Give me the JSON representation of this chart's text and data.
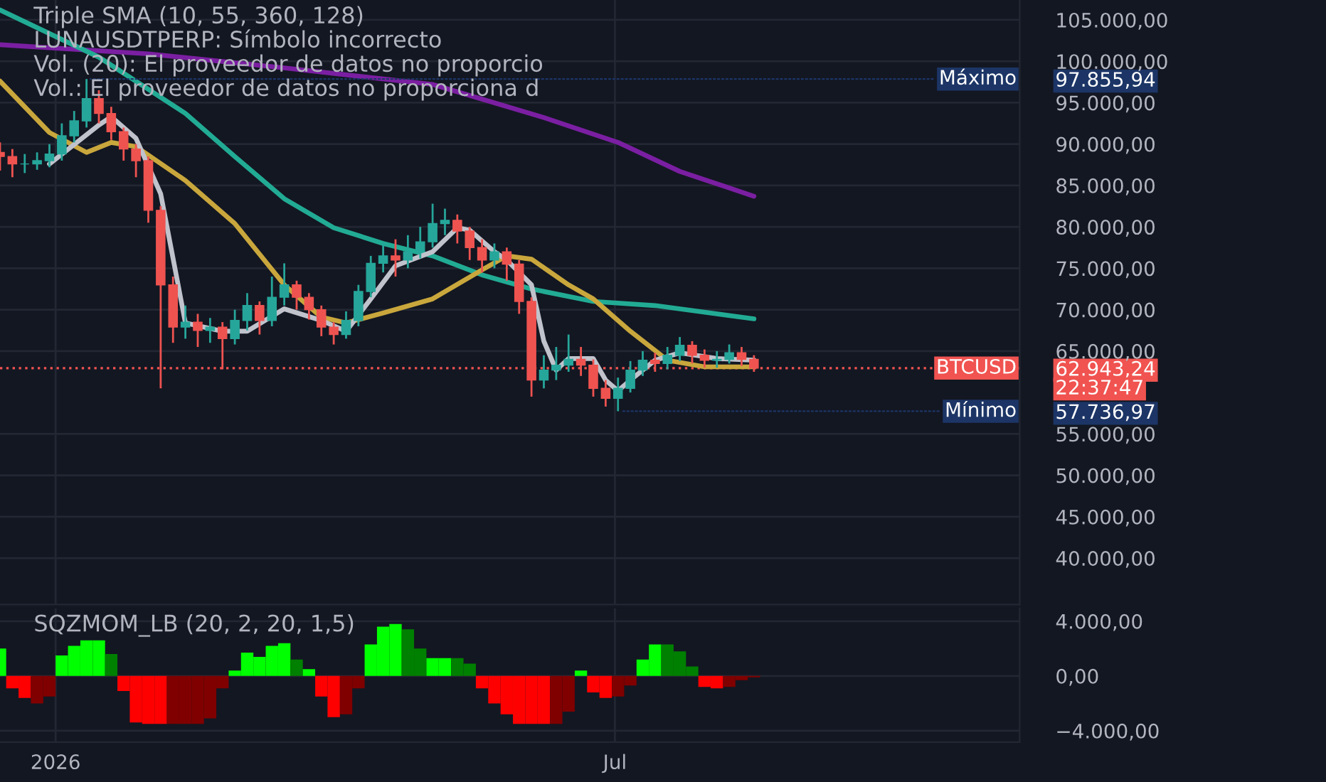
{
  "chart_data": [
    {
      "type": "candlestick",
      "title": "Triple SMA (10, 55, 360, 128)",
      "annotations": [
        "LUNAUSDTPERP: Símbolo incorrecto",
        "Vol. (20): El proveedor de datos no proporcio",
        "Vol.: El proveedor de datos no proporciona d",
        "22:37:47",
        {
          "text": "Máximo",
          "x": "2026-01-11",
          "y": 97855.94
        },
        {
          "text": "Mínimo",
          "x": "2026-07-02",
          "y": 57736.97
        }
      ],
      "x": [
        "2025-12-14",
        "2025-12-18",
        "2025-12-22",
        "2025-12-26",
        "2025-12-30",
        "2026-01-03",
        "2026-01-07",
        "2026-01-11",
        "2026-01-15",
        "2026-01-19",
        "2026-01-23",
        "2026-01-27",
        "2026-01-31",
        "2026-02-04",
        "2026-02-08",
        "2026-02-12",
        "2026-02-16",
        "2026-02-20",
        "2026-02-24",
        "2026-02-28",
        "2026-03-04",
        "2026-03-08",
        "2026-03-12",
        "2026-03-16",
        "2026-03-20",
        "2026-03-24",
        "2026-03-28",
        "2026-04-01",
        "2026-04-05",
        "2026-04-09",
        "2026-04-13",
        "2026-04-17",
        "2026-04-21",
        "2026-04-25",
        "2026-04-29",
        "2026-05-03",
        "2026-05-07",
        "2026-05-11",
        "2026-05-15",
        "2026-05-19",
        "2026-05-23",
        "2026-05-27",
        "2026-05-31",
        "2026-06-04",
        "2026-06-08",
        "2026-06-12",
        "2026-06-16",
        "2026-06-20",
        "2026-06-24",
        "2026-06-28",
        "2026-07-02",
        "2026-07-06",
        "2026-07-10",
        "2026-07-14",
        "2026-07-18",
        "2026-07-22",
        "2026-07-26",
        "2026-07-30",
        "2026-08-03",
        "2026-08-07",
        "2026-08-11",
        "2026-08-15"
      ],
      "ohlc": [
        [
          89000,
          90200,
          86800,
          88500
        ],
        [
          88500,
          89400,
          86000,
          87600
        ],
        [
          87600,
          88800,
          86500,
          87600
        ],
        [
          87600,
          89000,
          86900,
          88000
        ],
        [
          88000,
          90000,
          87200,
          88800
        ],
        [
          88800,
          92500,
          88000,
          91000
        ],
        [
          91000,
          94000,
          90200,
          92800
        ],
        [
          92800,
          97855.94,
          92000,
          95500
        ],
        [
          95500,
          96500,
          92500,
          93700
        ],
        [
          93700,
          94500,
          90500,
          91500
        ],
        [
          91500,
          92000,
          88000,
          89400
        ],
        [
          89400,
          90000,
          86000,
          88000
        ],
        [
          88000,
          88500,
          80500,
          82000
        ],
        [
          82000,
          82500,
          60500,
          73000
        ],
        [
          73000,
          74000,
          66000,
          67900
        ],
        [
          67900,
          70500,
          66500,
          68500
        ],
        [
          68500,
          69500,
          65500,
          67500
        ],
        [
          67500,
          69000,
          66000,
          67900
        ],
        [
          67900,
          68500,
          62800,
          66500
        ],
        [
          66500,
          70000,
          65800,
          68700
        ],
        [
          68700,
          72000,
          67500,
          70500
        ],
        [
          70500,
          71000,
          67000,
          68700
        ],
        [
          68700,
          74000,
          68000,
          71500
        ],
        [
          71500,
          75600,
          70500,
          73000
        ],
        [
          73000,
          73500,
          70000,
          71500
        ],
        [
          71500,
          72000,
          68800,
          70000
        ],
        [
          70000,
          70500,
          66800,
          67900
        ],
        [
          67900,
          68500,
          65800,
          67000
        ],
        [
          67000,
          69800,
          66500,
          68700
        ],
        [
          68700,
          73000,
          68000,
          72200
        ],
        [
          72200,
          76500,
          71500,
          75600
        ],
        [
          75600,
          78000,
          74500,
          76500
        ],
        [
          76500,
          78500,
          74000,
          76000
        ],
        [
          76000,
          79000,
          75000,
          77000
        ],
        [
          77000,
          80000,
          76200,
          78200
        ],
        [
          78200,
          82800,
          77500,
          80400
        ],
        [
          80400,
          82200,
          79000,
          80800
        ],
        [
          80800,
          81500,
          78000,
          79500
        ],
        [
          79500,
          80000,
          76000,
          77500
        ],
        [
          77500,
          78500,
          74500,
          76000
        ],
        [
          76000,
          78000,
          75000,
          77000
        ],
        [
          77000,
          77500,
          73500,
          75500
        ],
        [
          75500,
          76000,
          69500,
          71000
        ],
        [
          71000,
          71500,
          59500,
          61500
        ],
        [
          61500,
          64500,
          60500,
          62700
        ],
        [
          62700,
          65500,
          61500,
          63300
        ],
        [
          63300,
          67000,
          62500,
          64000
        ],
        [
          64000,
          65500,
          62000,
          63300
        ],
        [
          63300,
          64000,
          59500,
          60500
        ],
        [
          60500,
          61500,
          58300,
          59300
        ],
        [
          59300,
          61800,
          57736.97,
          60500
        ],
        [
          60500,
          63800,
          60000,
          62700
        ],
        [
          62700,
          65000,
          62000,
          63900
        ],
        [
          63900,
          64800,
          62500,
          63500
        ],
        [
          63500,
          65500,
          62800,
          64500
        ],
        [
          64500,
          66700,
          63800,
          65700
        ],
        [
          65700,
          66200,
          63500,
          64500
        ],
        [
          64500,
          65200,
          63000,
          63900
        ],
        [
          63900,
          65000,
          63000,
          64000
        ],
        [
          64000,
          65800,
          63500,
          64800
        ],
        [
          64800,
          65500,
          63200,
          64000
        ],
        [
          64000,
          64500,
          62500,
          62943.24
        ]
      ],
      "colors": [
        "#ef5350",
        "#ef5350",
        "#26a69a",
        "#26a69a",
        "#26a69a",
        "#26a69a",
        "#26a69a",
        "#26a69a",
        "#ef5350",
        "#ef5350",
        "#ef5350",
        "#ef5350",
        "#ef5350",
        "#ef5350",
        "#ef5350",
        "#26a69a",
        "#ef5350",
        "#26a69a",
        "#ef5350",
        "#26a69a",
        "#26a69a",
        "#ef5350",
        "#26a69a",
        "#26a69a",
        "#ef5350",
        "#ef5350",
        "#ef5350",
        "#ef5350",
        "#26a69a",
        "#26a69a",
        "#26a69a",
        "#26a69a",
        "#ef5350",
        "#26a69a",
        "#26a69a",
        "#26a69a",
        "#26a69a",
        "#ef5350",
        "#ef5350",
        "#ef5350",
        "#26a69a",
        "#ef5350",
        "#ef5350",
        "#ef5350",
        "#26a69a",
        "#26a69a",
        "#26a69a",
        "#ef5350",
        "#ef5350",
        "#ef5350",
        "#26a69a",
        "#26a69a",
        "#26a69a",
        "#ef5350",
        "#26a69a",
        "#26a69a",
        "#ef5350",
        "#ef5350",
        "#26a69a",
        "#26a69a",
        "#ef5350",
        "#ef5350"
      ],
      "series": [
        {
          "type": "line",
          "color": "#7b1fa2",
          "x": [
            "2025-12-14",
            "2026-01-31",
            "2026-03-16",
            "2026-05-03",
            "2026-06-08",
            "2026-07-02",
            "2026-07-22",
            "2026-08-15"
          ],
          "values": [
            102000,
            100900,
            99200,
            97200,
            93200,
            90200,
            86700,
            83700
          ]
        },
        {
          "type": "line",
          "color": "#22ab94",
          "x": [
            "2025-12-14",
            "2026-01-15",
            "2026-02-12",
            "2026-02-28",
            "2026-03-16",
            "2026-04-01",
            "2026-04-17",
            "2026-05-03",
            "2026-05-19",
            "2026-06-04",
            "2026-06-24",
            "2026-07-14",
            "2026-08-15"
          ],
          "values": [
            106200,
            100500,
            93700,
            88500,
            83400,
            79900,
            78000,
            76500,
            74200,
            72500,
            71000,
            70500,
            68900
          ]
        },
        {
          "type": "line",
          "color": "#c9a73c",
          "x": [
            "2025-12-14",
            "2025-12-30",
            "2026-01-11",
            "2026-01-19",
            "2026-01-27",
            "2026-02-12",
            "2026-02-28",
            "2026-03-16",
            "2026-03-28",
            "2026-04-05",
            "2026-04-17",
            "2026-05-03",
            "2026-05-19",
            "2026-05-27",
            "2026-06-04",
            "2026-06-16",
            "2026-06-24",
            "2026-07-06",
            "2026-07-18",
            "2026-07-30",
            "2026-08-15"
          ],
          "values": [
            97600,
            91400,
            89000,
            90200,
            89700,
            85600,
            80400,
            73000,
            69100,
            68400,
            69600,
            71300,
            74800,
            76500,
            76100,
            73000,
            71300,
            67400,
            63900,
            63100,
            63100
          ]
        },
        {
          "type": "line",
          "color": "#c0c3cc",
          "x": [
            "2025-12-30",
            "2026-01-15",
            "2026-01-19",
            "2026-01-27",
            "2026-02-04",
            "2026-02-12",
            "2026-02-24",
            "2026-03-04",
            "2026-03-16",
            "2026-03-28",
            "2026-04-05",
            "2026-04-13",
            "2026-04-21",
            "2026-05-03",
            "2026-05-11",
            "2026-05-15",
            "2026-05-23",
            "2026-05-27",
            "2026-06-04",
            "2026-06-08",
            "2026-06-12",
            "2026-06-16",
            "2026-06-24",
            "2026-06-28",
            "2026-07-02",
            "2026-07-06",
            "2026-07-14",
            "2026-07-22",
            "2026-08-03",
            "2026-08-15"
          ],
          "values": [
            87600,
            92300,
            93300,
            90700,
            84000,
            68400,
            67400,
            67400,
            70100,
            68700,
            67400,
            71300,
            75300,
            77000,
            79900,
            79600,
            77000,
            76000,
            73000,
            66200,
            62700,
            64100,
            64100,
            61500,
            60200,
            61500,
            63900,
            64800,
            64100,
            63900
          ]
        }
      ],
      "ref_lines": [
        {
          "axis": "y",
          "value": 62943.24,
          "label": "BTCUSD",
          "color": "#f05350",
          "line_style": "dotted"
        }
      ],
      "xlim": [
        "2025-12-14",
        "2026-11-09"
      ],
      "xticks": [
        {
          "value": "2026-01-01",
          "label": null
        },
        {
          "value": "2026-07-01",
          "label": null
        }
      ],
      "ylim": [
        34400,
        107400
      ],
      "yticks": [
        {
          "value": 40000,
          "label": "40.000,00"
        },
        {
          "value": 45000,
          "label": "45.000,00"
        },
        {
          "value": 50000,
          "label": "50.000,00"
        },
        {
          "value": 55000,
          "label": "55.000,00"
        },
        {
          "value": 57736.97,
          "label": "57.736,97"
        },
        {
          "value": 62943.24,
          "label": "62.943,24"
        },
        {
          "value": 65000,
          "label": "65.000,00"
        },
        {
          "value": 70000,
          "label": "70.000,00"
        },
        {
          "value": 75000,
          "label": "75.000,00"
        },
        {
          "value": 80000,
          "label": "80.000,00"
        },
        {
          "value": 85000,
          "label": "85.000,00"
        },
        {
          "value": 90000,
          "label": "90.000,00"
        },
        {
          "value": 95000,
          "label": "95.000,00"
        },
        {
          "value": 97855.94,
          "label": "97.855,94"
        },
        {
          "value": 100000,
          "label": "100.000,00"
        },
        {
          "value": 105000,
          "label": "105.000,00"
        }
      ],
      "grid": true,
      "tick_labels": "y"
    },
    {
      "type": "bar",
      "title": "SQZMOM_LB (20, 2, 20, 1,5)",
      "x": [
        "2025-12-14",
        "2025-12-18",
        "2025-12-22",
        "2025-12-26",
        "2025-12-30",
        "2026-01-03",
        "2026-01-07",
        "2026-01-11",
        "2026-01-15",
        "2026-01-19",
        "2026-01-23",
        "2026-01-27",
        "2026-01-31",
        "2026-02-04",
        "2026-02-08",
        "2026-02-12",
        "2026-02-16",
        "2026-02-20",
        "2026-02-24",
        "2026-02-28",
        "2026-03-04",
        "2026-03-08",
        "2026-03-12",
        "2026-03-16",
        "2026-03-20",
        "2026-03-24",
        "2026-03-28",
        "2026-04-01",
        "2026-04-05",
        "2026-04-09",
        "2026-04-13",
        "2026-04-17",
        "2026-04-21",
        "2026-04-25",
        "2026-04-29",
        "2026-05-03",
        "2026-05-07",
        "2026-05-11",
        "2026-05-15",
        "2026-05-19",
        "2026-05-23",
        "2026-05-27",
        "2026-05-31",
        "2026-06-04",
        "2026-06-08",
        "2026-06-12",
        "2026-06-16",
        "2026-06-20",
        "2026-06-24",
        "2026-06-28",
        "2026-07-02",
        "2026-07-06",
        "2026-07-10",
        "2026-07-14",
        "2026-07-18",
        "2026-07-22",
        "2026-07-26",
        "2026-07-30",
        "2026-08-03",
        "2026-08-07",
        "2026-08-11",
        "2026-08-15"
      ],
      "values": [
        2000,
        -900,
        -1600,
        -2000,
        -1500,
        1500,
        2200,
        2600,
        2600,
        1600,
        -1100,
        -3400,
        -3500,
        -3500,
        -3500,
        -3500,
        -3500,
        -3100,
        -900,
        400,
        1700,
        1400,
        2200,
        2400,
        1200,
        500,
        -1500,
        -3000,
        -2800,
        -900,
        2300,
        3600,
        3800,
        3400,
        2000,
        1300,
        1300,
        1300,
        900,
        -900,
        -2000,
        -2800,
        -3500,
        -3500,
        -3500,
        -3500,
        -2600,
        400,
        -1200,
        -1600,
        -1500,
        -700,
        1200,
        2300,
        2300,
        1800,
        700,
        -800,
        -900,
        -800,
        -300,
        -100
      ],
      "colors": [
        "#00ff00",
        "#ff0000",
        "#ff0000",
        "#800000",
        "#800000",
        "#00ff00",
        "#00ff00",
        "#00ff00",
        "#00ff00",
        "#008000",
        "#ff0000",
        "#ff0000",
        "#ff0000",
        "#ff0000",
        "#800000",
        "#800000",
        "#800000",
        "#800000",
        "#800000",
        "#00ff00",
        "#00ff00",
        "#00ff00",
        "#00ff00",
        "#00ff00",
        "#008000",
        "#00ff00",
        "#ff0000",
        "#ff0000",
        "#800000",
        "#800000",
        "#00ff00",
        "#00ff00",
        "#00ff00",
        "#008000",
        "#008000",
        "#00ff00",
        "#00ff00",
        "#008000",
        "#008000",
        "#ff0000",
        "#ff0000",
        "#ff0000",
        "#ff0000",
        "#ff0000",
        "#ff0000",
        "#800000",
        "#800000",
        "#00ff00",
        "#ff0000",
        "#ff0000",
        "#800000",
        "#800000",
        "#00ff00",
        "#00ff00",
        "#008000",
        "#008000",
        "#008000",
        "#ff0000",
        "#ff0000",
        "#800000",
        "#800000",
        "#800000"
      ],
      "xlim": [
        "2025-12-14",
        "2026-11-09"
      ],
      "xticks": [
        {
          "value": "2026-01-01",
          "label": "2026"
        },
        {
          "value": "2026-07-01",
          "label": "Jul"
        }
      ],
      "ylim": [
        -4830,
        4935
      ],
      "yticks": [
        {
          "value": -4000,
          "label": "−4.000,00"
        },
        {
          "value": 0,
          "label": "0,00"
        },
        {
          "value": 4000,
          "label": "4.000,00"
        }
      ],
      "grid": true
    }
  ]
}
